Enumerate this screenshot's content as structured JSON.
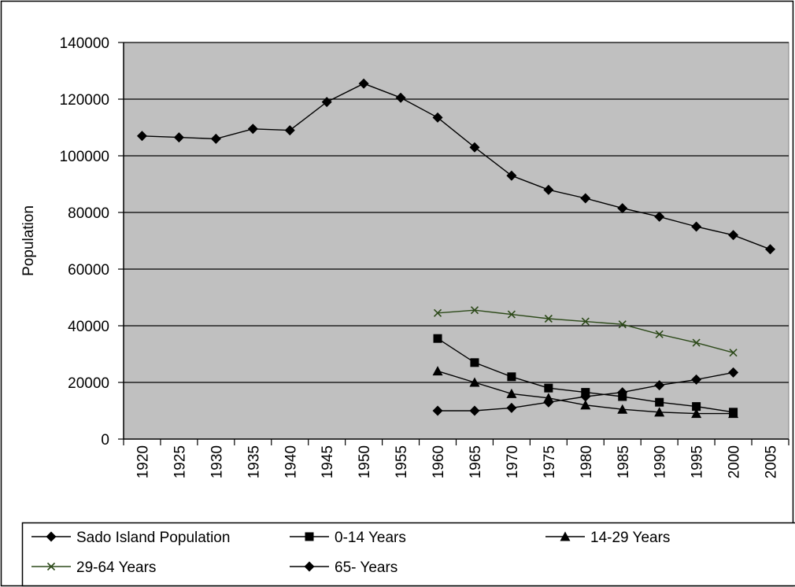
{
  "chart_data": {
    "type": "line",
    "title": "",
    "xlabel": "",
    "ylabel": "Population",
    "ylim": [
      0,
      140000
    ],
    "yticks": [
      0,
      20000,
      40000,
      60000,
      80000,
      100000,
      120000,
      140000
    ],
    "categories": [
      "1920",
      "1925",
      "1930",
      "1935",
      "1940",
      "1945",
      "1950",
      "1955",
      "1960",
      "1965",
      "1970",
      "1975",
      "1980",
      "1985",
      "1990",
      "1995",
      "2000",
      "2005"
    ],
    "grid": true,
    "legend_position": "bottom",
    "plot_background": "#c0c0c0",
    "series": [
      {
        "name": "Sado Island Population",
        "marker": "diamond",
        "color": "#000000",
        "values": [
          107000,
          106500,
          106000,
          109500,
          109000,
          119000,
          125500,
          120500,
          113500,
          103000,
          93000,
          88000,
          85000,
          81500,
          78500,
          75000,
          72000,
          67000
        ]
      },
      {
        "name": "0-14 Years",
        "marker": "square",
        "color": "#000000",
        "values": [
          null,
          null,
          null,
          null,
          null,
          null,
          null,
          null,
          35500,
          27000,
          22000,
          18000,
          16500,
          15000,
          13000,
          11500,
          9500,
          null
        ]
      },
      {
        "name": "14-29 Years",
        "marker": "triangle",
        "color": "#000000",
        "values": [
          null,
          null,
          null,
          null,
          null,
          null,
          null,
          null,
          24000,
          20000,
          16000,
          14500,
          12000,
          10500,
          9500,
          9000,
          9000,
          null
        ]
      },
      {
        "name": "29-64 Years",
        "marker": "x",
        "color": "#2d4a1a",
        "values": [
          null,
          null,
          null,
          null,
          null,
          null,
          null,
          null,
          44500,
          45500,
          44000,
          42500,
          41500,
          40500,
          37000,
          34000,
          30500,
          null
        ]
      },
      {
        "name": "65- Years",
        "marker": "diamond",
        "color": "#000000",
        "values": [
          null,
          null,
          null,
          null,
          null,
          null,
          null,
          null,
          10000,
          10000,
          11000,
          13000,
          15000,
          16500,
          19000,
          21000,
          23500,
          null
        ]
      }
    ]
  }
}
